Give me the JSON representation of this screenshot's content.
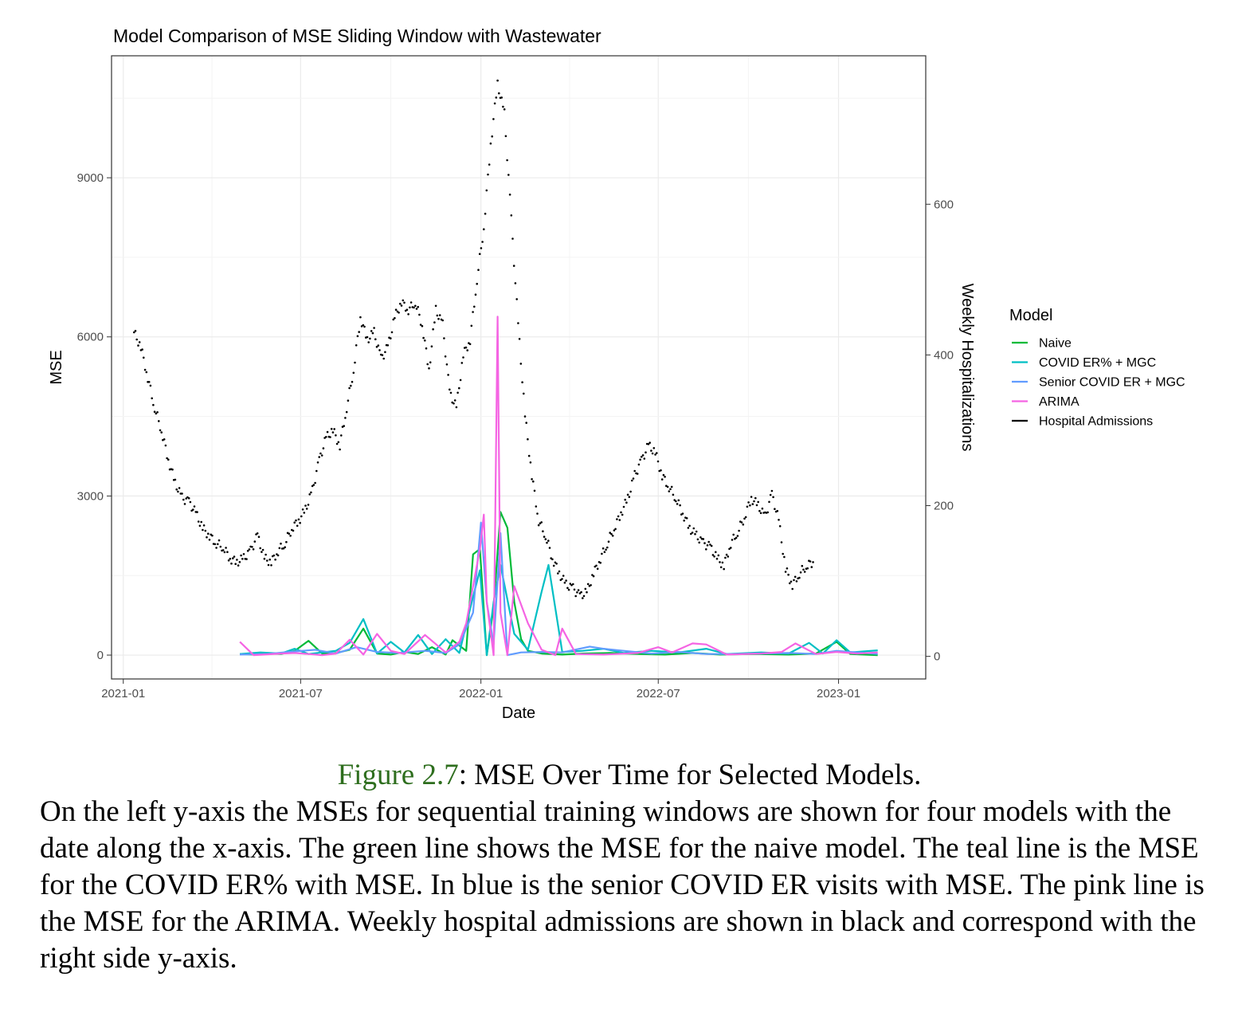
{
  "chart_data": {
    "type": "line",
    "title": "Model Comparison of MSE Sliding Window with Wastewater",
    "xlabel": "Date",
    "ylabel": "MSE",
    "y2label": "Weekly Hospitalizations",
    "xlim": [
      "2020-12-20",
      "2023-03-31"
    ],
    "ylim": [
      -450,
      11300
    ],
    "y2lim": [
      -30,
      797
    ],
    "x_ticks": [
      "2021-01-01",
      "2021-07-01",
      "2022-01-01",
      "2022-07-01",
      "2023-01-01"
    ],
    "x_tick_labels": [
      "2021-01",
      "2021-07",
      "2022-01",
      "2022-07",
      "2023-01"
    ],
    "y_ticks": [
      0,
      3000,
      6000,
      9000
    ],
    "y_tick_labels": [
      "0",
      "3000",
      "6000",
      "9000"
    ],
    "y2_ticks": [
      0,
      200,
      400,
      600
    ],
    "y2_tick_labels": [
      "0",
      "200",
      "400",
      "600"
    ],
    "grid": true,
    "legend": {
      "title": "Model",
      "position": "right"
    },
    "series": [
      {
        "name": "Naive",
        "color": "#00ba38",
        "axis": "left",
        "points": [
          [
            "2021-04-30",
            20
          ],
          [
            "2021-05-14",
            10
          ],
          [
            "2021-05-28",
            30
          ],
          [
            "2021-06-11",
            20
          ],
          [
            "2021-06-25",
            80
          ],
          [
            "2021-07-09",
            270
          ],
          [
            "2021-07-23",
            30
          ],
          [
            "2021-08-06",
            40
          ],
          [
            "2021-08-20",
            100
          ],
          [
            "2021-09-03",
            500
          ],
          [
            "2021-09-17",
            30
          ],
          [
            "2021-10-01",
            10
          ],
          [
            "2021-10-15",
            60
          ],
          [
            "2021-10-29",
            20
          ],
          [
            "2021-11-12",
            150
          ],
          [
            "2021-11-26",
            10
          ],
          [
            "2021-12-03",
            280
          ],
          [
            "2021-12-17",
            80
          ],
          [
            "2021-12-24",
            1900
          ],
          [
            "2021-12-31",
            2000
          ],
          [
            "2022-01-07",
            0
          ],
          [
            "2022-01-14",
            900
          ],
          [
            "2022-01-21",
            2700
          ],
          [
            "2022-01-28",
            2400
          ],
          [
            "2022-02-04",
            1000
          ],
          [
            "2022-02-11",
            300
          ],
          [
            "2022-02-18",
            80
          ],
          [
            "2022-03-04",
            30
          ],
          [
            "2022-03-25",
            10
          ],
          [
            "2022-04-15",
            30
          ],
          [
            "2022-05-13",
            40
          ],
          [
            "2022-06-10",
            20
          ],
          [
            "2022-07-08",
            10
          ],
          [
            "2022-08-05",
            40
          ],
          [
            "2022-09-02",
            10
          ],
          [
            "2022-10-07",
            20
          ],
          [
            "2022-11-11",
            10
          ],
          [
            "2022-12-09",
            30
          ],
          [
            "2022-12-30",
            250
          ],
          [
            "2023-01-13",
            20
          ],
          [
            "2023-02-10",
            0
          ]
        ]
      },
      {
        "name": "COVID ER% + MGC",
        "color": "#00bfc4",
        "axis": "left",
        "points": [
          [
            "2021-04-30",
            20
          ],
          [
            "2021-05-21",
            50
          ],
          [
            "2021-06-11",
            30
          ],
          [
            "2021-06-25",
            120
          ],
          [
            "2021-07-09",
            20
          ],
          [
            "2021-07-23",
            50
          ],
          [
            "2021-08-06",
            80
          ],
          [
            "2021-08-20",
            230
          ],
          [
            "2021-09-03",
            680
          ],
          [
            "2021-09-17",
            30
          ],
          [
            "2021-10-01",
            250
          ],
          [
            "2021-10-15",
            50
          ],
          [
            "2021-10-29",
            380
          ],
          [
            "2021-11-12",
            20
          ],
          [
            "2021-11-26",
            300
          ],
          [
            "2021-12-10",
            40
          ],
          [
            "2021-12-24",
            1100
          ],
          [
            "2021-12-31",
            1600
          ],
          [
            "2022-01-07",
            0
          ],
          [
            "2022-01-14",
            1000
          ],
          [
            "2022-01-21",
            1700
          ],
          [
            "2022-02-04",
            400
          ],
          [
            "2022-02-18",
            100
          ],
          [
            "2022-03-04",
            1200
          ],
          [
            "2022-03-11",
            1700
          ],
          [
            "2022-03-25",
            60
          ],
          [
            "2022-04-15",
            80
          ],
          [
            "2022-05-06",
            120
          ],
          [
            "2022-05-27",
            40
          ],
          [
            "2022-06-24",
            80
          ],
          [
            "2022-07-22",
            50
          ],
          [
            "2022-08-19",
            120
          ],
          [
            "2022-09-09",
            20
          ],
          [
            "2022-10-14",
            50
          ],
          [
            "2022-11-11",
            30
          ],
          [
            "2022-12-02",
            230
          ],
          [
            "2022-12-16",
            30
          ],
          [
            "2022-12-30",
            280
          ],
          [
            "2023-01-13",
            50
          ],
          [
            "2023-02-10",
            90
          ]
        ]
      },
      {
        "name": "Senior COVID ER + MGC",
        "color": "#619cff",
        "axis": "left",
        "points": [
          [
            "2021-04-30",
            10
          ],
          [
            "2021-05-28",
            20
          ],
          [
            "2021-06-25",
            70
          ],
          [
            "2021-07-16",
            100
          ],
          [
            "2021-08-06",
            30
          ],
          [
            "2021-08-27",
            150
          ],
          [
            "2021-09-17",
            60
          ],
          [
            "2021-10-08",
            40
          ],
          [
            "2021-11-05",
            80
          ],
          [
            "2021-11-26",
            40
          ],
          [
            "2021-12-10",
            200
          ],
          [
            "2021-12-24",
            800
          ],
          [
            "2022-01-01",
            2500
          ],
          [
            "2022-01-07",
            1000
          ],
          [
            "2022-01-14",
            200
          ],
          [
            "2022-01-21",
            2300
          ],
          [
            "2022-01-28",
            0
          ],
          [
            "2022-02-11",
            50
          ],
          [
            "2022-03-04",
            60
          ],
          [
            "2022-03-25",
            50
          ],
          [
            "2022-04-22",
            160
          ],
          [
            "2022-05-06",
            120
          ],
          [
            "2022-05-27",
            80
          ],
          [
            "2022-06-24",
            30
          ],
          [
            "2022-07-22",
            60
          ],
          [
            "2022-08-19",
            20
          ],
          [
            "2022-09-16",
            20
          ],
          [
            "2022-10-14",
            30
          ],
          [
            "2022-11-11",
            40
          ],
          [
            "2022-12-09",
            20
          ],
          [
            "2022-12-30",
            80
          ],
          [
            "2023-01-20",
            50
          ],
          [
            "2023-02-10",
            20
          ]
        ]
      },
      {
        "name": "ARIMA",
        "color": "#f564e3",
        "axis": "left",
        "points": [
          [
            "2021-04-30",
            250
          ],
          [
            "2021-05-14",
            0
          ],
          [
            "2021-06-11",
            30
          ],
          [
            "2021-06-25",
            40
          ],
          [
            "2021-07-09",
            20
          ],
          [
            "2021-07-23",
            0
          ],
          [
            "2021-08-06",
            30
          ],
          [
            "2021-08-20",
            290
          ],
          [
            "2021-09-03",
            10
          ],
          [
            "2021-09-17",
            400
          ],
          [
            "2021-10-01",
            80
          ],
          [
            "2021-10-15",
            20
          ],
          [
            "2021-11-05",
            380
          ],
          [
            "2021-11-26",
            50
          ],
          [
            "2021-12-10",
            250
          ],
          [
            "2021-12-17",
            600
          ],
          [
            "2021-12-31",
            2000
          ],
          [
            "2022-01-04",
            2650
          ],
          [
            "2022-01-07",
            1000
          ],
          [
            "2022-01-14",
            0
          ],
          [
            "2022-01-18",
            6380
          ],
          [
            "2022-01-21",
            800
          ],
          [
            "2022-01-28",
            0
          ],
          [
            "2022-02-04",
            1300
          ],
          [
            "2022-02-18",
            600
          ],
          [
            "2022-03-04",
            100
          ],
          [
            "2022-03-18",
            0
          ],
          [
            "2022-03-25",
            500
          ],
          [
            "2022-04-08",
            20
          ],
          [
            "2022-05-06",
            10
          ],
          [
            "2022-06-10",
            40
          ],
          [
            "2022-07-01",
            150
          ],
          [
            "2022-07-15",
            50
          ],
          [
            "2022-08-05",
            220
          ],
          [
            "2022-08-19",
            200
          ],
          [
            "2022-09-09",
            10
          ],
          [
            "2022-10-14",
            30
          ],
          [
            "2022-11-04",
            60
          ],
          [
            "2022-11-18",
            220
          ],
          [
            "2022-12-09",
            20
          ],
          [
            "2022-12-30",
            60
          ],
          [
            "2023-01-20",
            30
          ],
          [
            "2023-02-10",
            50
          ]
        ]
      }
    ],
    "admissions": {
      "name": "Hospital Admissions",
      "color": "#000000",
      "axis": "right",
      "points": [
        [
          "2021-01-12",
          430
        ],
        [
          "2021-01-19",
          410
        ],
        [
          "2021-01-26",
          370
        ],
        [
          "2021-02-02",
          330
        ],
        [
          "2021-02-09",
          300
        ],
        [
          "2021-02-16",
          260
        ],
        [
          "2021-02-23",
          230
        ],
        [
          "2021-03-02",
          210
        ],
        [
          "2021-03-09",
          205
        ],
        [
          "2021-03-16",
          190
        ],
        [
          "2021-03-23",
          170
        ],
        [
          "2021-03-30",
          160
        ],
        [
          "2021-04-06",
          150
        ],
        [
          "2021-04-13",
          145
        ],
        [
          "2021-04-20",
          130
        ],
        [
          "2021-04-27",
          125
        ],
        [
          "2021-05-04",
          130
        ],
        [
          "2021-05-11",
          140
        ],
        [
          "2021-05-18",
          160
        ],
        [
          "2021-05-25",
          130
        ],
        [
          "2021-06-01",
          125
        ],
        [
          "2021-06-08",
          140
        ],
        [
          "2021-06-15",
          150
        ],
        [
          "2021-06-22",
          170
        ],
        [
          "2021-06-29",
          180
        ],
        [
          "2021-07-06",
          195
        ],
        [
          "2021-07-13",
          220
        ],
        [
          "2021-07-20",
          260
        ],
        [
          "2021-07-27",
          290
        ],
        [
          "2021-08-03",
          300
        ],
        [
          "2021-08-10",
          280
        ],
        [
          "2021-08-17",
          330
        ],
        [
          "2021-08-24",
          380
        ],
        [
          "2021-08-31",
          450
        ],
        [
          "2021-09-07",
          420
        ],
        [
          "2021-09-14",
          430
        ],
        [
          "2021-09-21",
          395
        ],
        [
          "2021-09-28",
          410
        ],
        [
          "2021-10-05",
          450
        ],
        [
          "2021-10-12",
          470
        ],
        [
          "2021-10-19",
          460
        ],
        [
          "2021-10-26",
          470
        ],
        [
          "2021-11-02",
          440
        ],
        [
          "2021-11-09",
          380
        ],
        [
          "2021-11-16",
          460
        ],
        [
          "2021-11-23",
          440
        ],
        [
          "2021-11-30",
          350
        ],
        [
          "2021-12-07",
          330
        ],
        [
          "2021-12-14",
          400
        ],
        [
          "2021-12-21",
          420
        ],
        [
          "2021-12-28",
          500
        ],
        [
          "2022-01-04",
          570
        ],
        [
          "2022-01-11",
          680
        ],
        [
          "2022-01-18",
          760
        ],
        [
          "2022-01-25",
          720
        ],
        [
          "2022-02-01",
          580
        ],
        [
          "2022-02-08",
          440
        ],
        [
          "2022-02-15",
          320
        ],
        [
          "2022-02-22",
          240
        ],
        [
          "2022-03-01",
          180
        ],
        [
          "2022-03-08",
          160
        ],
        [
          "2022-03-15",
          130
        ],
        [
          "2022-03-22",
          110
        ],
        [
          "2022-03-29",
          95
        ],
        [
          "2022-04-05",
          90
        ],
        [
          "2022-04-12",
          80
        ],
        [
          "2022-04-19",
          85
        ],
        [
          "2022-04-26",
          110
        ],
        [
          "2022-05-03",
          130
        ],
        [
          "2022-05-10",
          150
        ],
        [
          "2022-05-17",
          170
        ],
        [
          "2022-05-24",
          190
        ],
        [
          "2022-05-31",
          210
        ],
        [
          "2022-06-07",
          240
        ],
        [
          "2022-06-14",
          260
        ],
        [
          "2022-06-21",
          280
        ],
        [
          "2022-06-28",
          270
        ],
        [
          "2022-07-05",
          240
        ],
        [
          "2022-07-12",
          225
        ],
        [
          "2022-07-19",
          210
        ],
        [
          "2022-07-26",
          190
        ],
        [
          "2022-08-02",
          170
        ],
        [
          "2022-08-09",
          160
        ],
        [
          "2022-08-16",
          150
        ],
        [
          "2022-08-23",
          145
        ],
        [
          "2022-08-30",
          130
        ],
        [
          "2022-09-06",
          120
        ],
        [
          "2022-09-13",
          150
        ],
        [
          "2022-09-20",
          165
        ],
        [
          "2022-09-27",
          185
        ],
        [
          "2022-10-04",
          210
        ],
        [
          "2022-10-11",
          200
        ],
        [
          "2022-10-18",
          185
        ],
        [
          "2022-10-25",
          215
        ],
        [
          "2022-11-01",
          180
        ],
        [
          "2022-11-08",
          115
        ],
        [
          "2022-11-15",
          95
        ],
        [
          "2022-11-22",
          110
        ],
        [
          "2022-11-29",
          120
        ],
        [
          "2022-12-06",
          125
        ]
      ]
    }
  },
  "caption": {
    "figure_label": "Figure 2.7",
    "figure_title": ": MSE Over Time for Selected Models.",
    "body": "On the left y-axis the MSEs for sequential training windows are shown for four models with the date along the x-axis. The green line shows the MSE for the naive model. The teal line is the MSE for the COVID ER% with MSE. In blue is the senior COVID ER visits with MSE. The pink line is the MSE for the ARIMA. Weekly hospital admissions are shown in black and correspond with the right side y-axis."
  }
}
